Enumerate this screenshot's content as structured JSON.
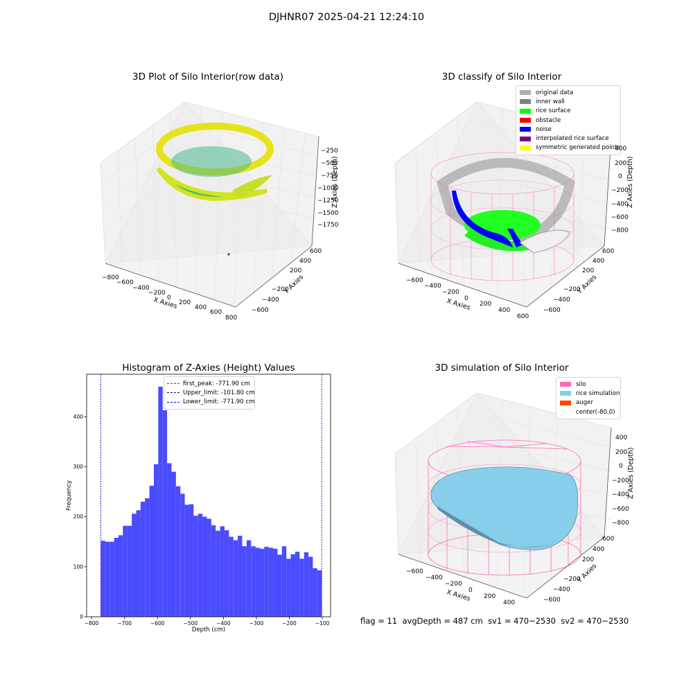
{
  "figure_title": "DJHNR07 2025-04-21 12:24:10",
  "footer": {
    "flag": "flag = 11",
    "avgdepth": "avgDepth = 487 cm",
    "sv1": "sv1 = 470~2530",
    "sv2": "sv2 = 470~2530"
  },
  "colors": {
    "histogram_bar": "#4b4bff",
    "first_peak": "#ff0000",
    "upper_limit": "#00008b",
    "lower_limit": "#0000ff",
    "silo": "#ff69b4",
    "rice_simulation": "#87ceeb",
    "auger": "#ff4500"
  },
  "panels": {
    "raw": {
      "title": "3D Plot of Silo Interior(row data)",
      "xlabel": "X Axies",
      "ylabel": "Y Axies",
      "zlabel": "Z Axies (Depth)",
      "xticks": [
        "−800",
        "−600",
        "−400",
        "−200",
        "0",
        "200",
        "400",
        "600",
        "800"
      ],
      "yticks": [
        "600",
        "400",
        "200",
        "−200",
        "−400",
        "−600"
      ],
      "zticks": [
        "−250",
        "−500",
        "−750",
        "−1000",
        "−1250",
        "−1500",
        "−1750"
      ]
    },
    "classify": {
      "title": "3D classify of Silo Interior",
      "xlabel": "X Axies",
      "ylabel": "Y Axies",
      "zlabel": "Z Axies (Depth)",
      "xticks": [
        "−600",
        "−400",
        "−200",
        "0",
        "200",
        "400",
        "600"
      ],
      "yticks": [
        "600",
        "400",
        "200",
        "−200",
        "−400",
        "−600"
      ],
      "zticks": [
        "200",
        "0",
        "−200",
        "−400",
        "−600",
        "−800"
      ],
      "ztick_top": "400",
      "legend": [
        {
          "label": "original data",
          "color": "#b0b0b0"
        },
        {
          "label": "inner wall",
          "color": "#808080"
        },
        {
          "label": "rice surface",
          "color": "#00ff00"
        },
        {
          "label": "obstacle",
          "color": "#ff0000"
        },
        {
          "label": "noise",
          "color": "#0000ff"
        },
        {
          "label": "interpolated rice surface",
          "color": "#800080"
        },
        {
          "label": "symmetric generated points",
          "color": "#ffff00"
        }
      ]
    },
    "simulation": {
      "title": "3D simulation of Silo Interior",
      "xlabel": "X Axies",
      "ylabel": "Y Axies",
      "zlabel": "Z Axies (Depth)",
      "xticks": [
        "−600",
        "−400",
        "−200",
        "0",
        "200",
        "400"
      ],
      "yticks": [
        "600",
        "400",
        "200",
        "−200",
        "−400",
        "−600"
      ],
      "zticks": [
        "400",
        "200",
        "0",
        "−200",
        "−400",
        "−600",
        "−800"
      ],
      "legend": [
        {
          "label": "silo",
          "color": "#ff69b4"
        },
        {
          "label": "rice simulation",
          "color": "#87ceeb"
        },
        {
          "label": "auger",
          "color": "#ff4500"
        },
        {
          "label": "center(-80,0)",
          "color": "transparent"
        }
      ]
    }
  },
  "chart_data": [
    {
      "type": "bar",
      "title": "Histogram of Z-Axies (Height) Values",
      "xlabel": "Depth (cm)",
      "ylabel": "Frequency",
      "xlim": [
        -815,
        -75
      ],
      "ylim": [
        0,
        485
      ],
      "xticks": [
        -800,
        -700,
        -600,
        -500,
        -400,
        -300,
        -200,
        -100
      ],
      "yticks": [
        0,
        100,
        200,
        300,
        400
      ],
      "bin_start": -771.9,
      "bin_width": 13.4,
      "values": [
        152,
        150,
        150,
        158,
        163,
        182,
        182,
        206,
        213,
        230,
        237,
        262,
        305,
        460,
        413,
        307,
        290,
        261,
        246,
        224,
        225,
        202,
        206,
        200,
        196,
        183,
        172,
        181,
        173,
        160,
        153,
        162,
        141,
        153,
        141,
        138,
        136,
        140,
        138,
        136,
        124,
        141,
        116,
        125,
        130,
        116,
        129,
        120,
        97,
        93
      ],
      "legend": [
        {
          "label": "first_peak: -771.90 cm",
          "value": -771.9
        },
        {
          "label": "Upper_limit: -101.80 cm",
          "value": -101.8
        },
        {
          "label": "Lower_limit: -771.90 cm",
          "value": -771.9
        }
      ]
    }
  ]
}
